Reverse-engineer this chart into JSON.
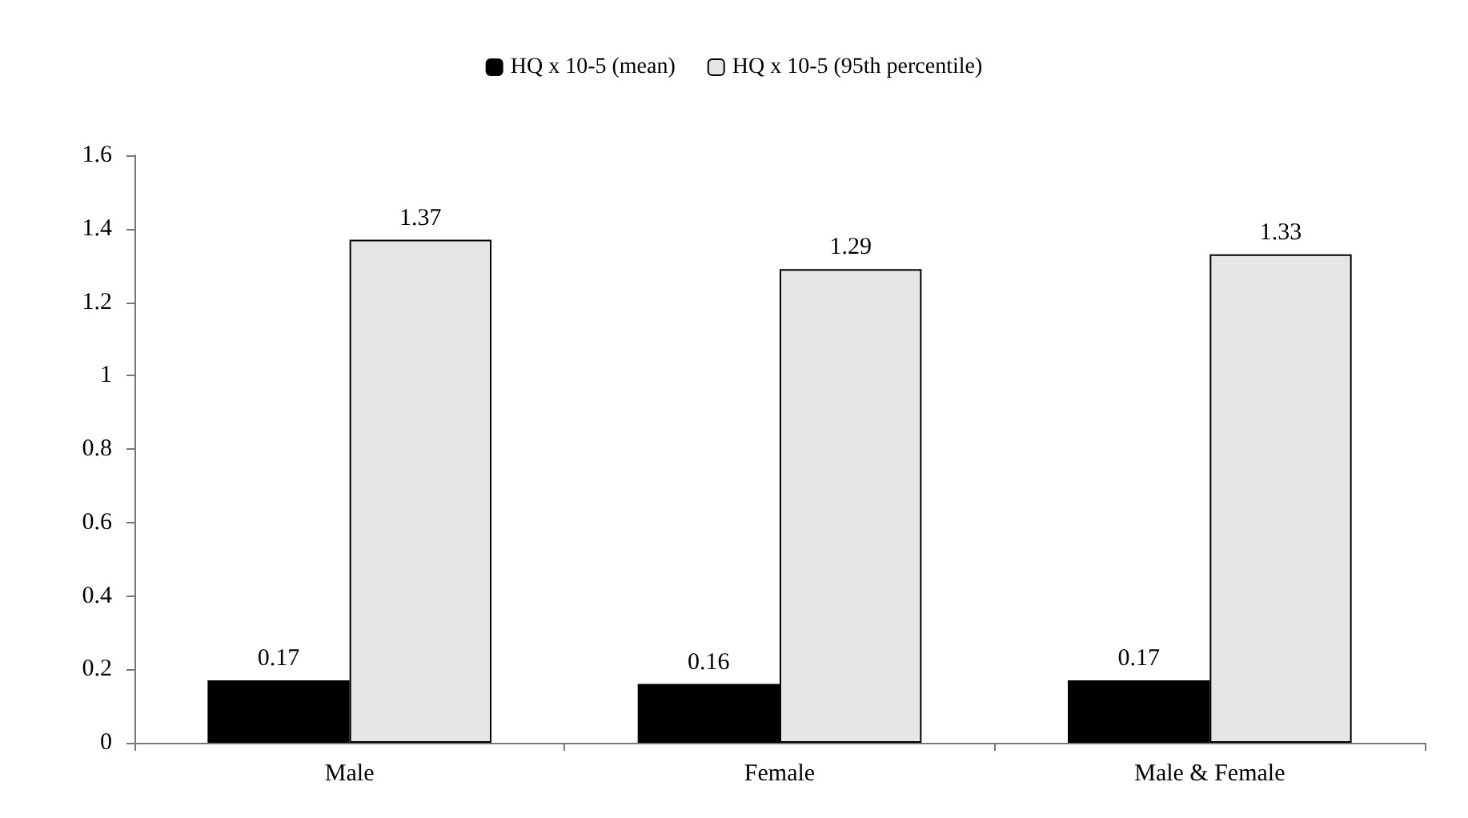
{
  "chart_data": {
    "type": "bar",
    "categories": [
      "Male",
      "Female",
      "Male & Female"
    ],
    "series": [
      {
        "name": "HQ x 10-5 (mean)",
        "color": "#000000",
        "values": [
          0.17,
          0.16,
          0.17
        ]
      },
      {
        "name": "HQ x 10-5 (95th percentile)",
        "color": "#e6e6e6",
        "values": [
          1.37,
          1.29,
          1.33
        ]
      }
    ],
    "ylim": [
      0,
      1.6
    ],
    "yticks": [
      0,
      0.2,
      0.4,
      0.6,
      0.8,
      1,
      1.2,
      1.4,
      1.6
    ],
    "grid": false,
    "legend": "top",
    "data_labels": true
  }
}
